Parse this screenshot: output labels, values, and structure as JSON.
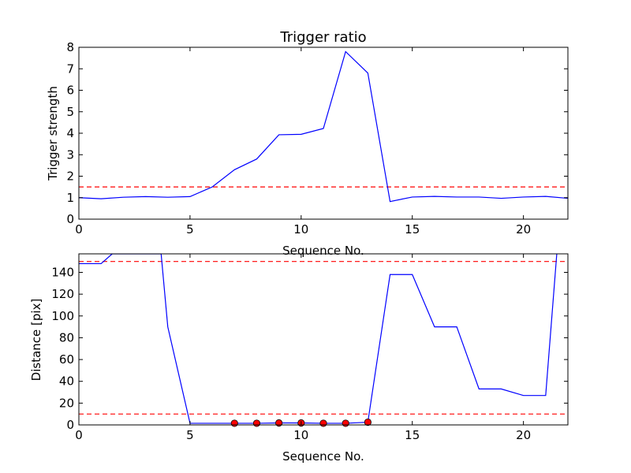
{
  "chart_data": [
    {
      "type": "line",
      "title": "Trigger ratio",
      "xlabel": "Sequence No.",
      "ylabel": "Trigger strength",
      "xlim": [
        0,
        22
      ],
      "ylim": [
        0,
        8
      ],
      "xticks": [
        0,
        5,
        10,
        15,
        20
      ],
      "yticks": [
        0,
        1,
        2,
        3,
        4,
        5,
        6,
        7,
        8
      ],
      "grid": false,
      "series": [
        {
          "style": "solid",
          "color": "#0000ff",
          "x": [
            0,
            1,
            2,
            3,
            4,
            5,
            6,
            7,
            8,
            9,
            10,
            11,
            12,
            13,
            14,
            15,
            16,
            17,
            18,
            19,
            20,
            21,
            22
          ],
          "y": [
            1.0,
            0.95,
            1.02,
            1.05,
            1.02,
            1.05,
            1.5,
            2.3,
            2.8,
            3.93,
            3.95,
            4.22,
            7.8,
            6.8,
            0.82,
            1.03,
            1.06,
            1.03,
            1.03,
            0.97,
            1.03,
            1.06,
            0.97
          ]
        }
      ],
      "hlines": [
        {
          "y": 1.5,
          "color": "#ff0000",
          "style": "dashed"
        }
      ]
    },
    {
      "type": "line",
      "title": "",
      "xlabel": "Sequence No.",
      "ylabel": "Distance [pix]",
      "xlim": [
        0,
        22
      ],
      "ylim": [
        0,
        157
      ],
      "xticks": [
        0,
        5,
        10,
        15,
        20
      ],
      "yticks": [
        0,
        20,
        40,
        60,
        80,
        100,
        120,
        140
      ],
      "grid": false,
      "series": [
        {
          "style": "solid",
          "color": "#0000ff",
          "x": [
            0,
            1,
            1.5,
            3.7,
            4,
            5,
            6,
            7,
            8,
            9,
            10,
            11,
            12,
            13,
            14,
            15,
            16,
            17,
            18,
            19,
            20,
            21,
            21.5
          ],
          "y": [
            148,
            148,
            157,
            157,
            90,
            1.5,
            1.5,
            1.5,
            1.5,
            1.8,
            1.8,
            1.5,
            1.5,
            2.5,
            138,
            138,
            90,
            90,
            33,
            33,
            27,
            27,
            157
          ]
        },
        {
          "style": "markers",
          "color": "#ff0000",
          "x": [
            7,
            8,
            9,
            10,
            11,
            12,
            13
          ],
          "y": [
            1.5,
            1.5,
            1.8,
            1.8,
            1.5,
            1.5,
            2.5
          ]
        }
      ],
      "hlines": [
        {
          "y": 150,
          "color": "#ff0000",
          "style": "dashed"
        },
        {
          "y": 10,
          "color": "#ff0000",
          "style": "dashed"
        }
      ]
    }
  ]
}
